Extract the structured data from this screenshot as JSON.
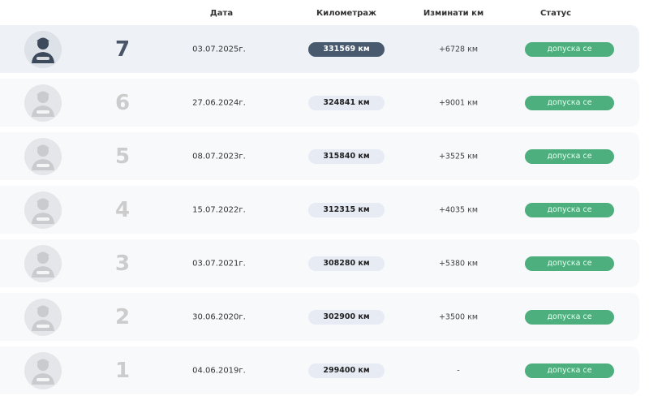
{
  "headers": {
    "date": "Дата",
    "mileage": "Километраж",
    "diff": "Изминати км",
    "status": "Статус"
  },
  "colors": {
    "active_row": "#eef2f7",
    "active_badge": "#4a5a6e",
    "status_green": "#4caf7d"
  },
  "rows": [
    {
      "n": "7",
      "date": "03.07.2025г.",
      "km": "331569 км",
      "diff": "+6728 км",
      "status": "допуска се",
      "active": true
    },
    {
      "n": "6",
      "date": "27.06.2024г.",
      "km": "324841 км",
      "diff": "+9001 км",
      "status": "допуска се"
    },
    {
      "n": "5",
      "date": "08.07.2023г.",
      "km": "315840 км",
      "diff": "+3525 км",
      "status": "допуска се"
    },
    {
      "n": "4",
      "date": "15.07.2022г.",
      "km": "312315 км",
      "diff": "+4035 км",
      "status": "допуска се"
    },
    {
      "n": "3",
      "date": "03.07.2021г.",
      "km": "308280 км",
      "diff": "+5380 км",
      "status": "допуска се"
    },
    {
      "n": "2",
      "date": "30.06.2020г.",
      "km": "302900 км",
      "diff": "+3500 км",
      "status": "допуска се"
    },
    {
      "n": "1",
      "date": "04.06.2019г.",
      "km": "299400 км",
      "diff": "-",
      "status": "допуска се"
    }
  ]
}
